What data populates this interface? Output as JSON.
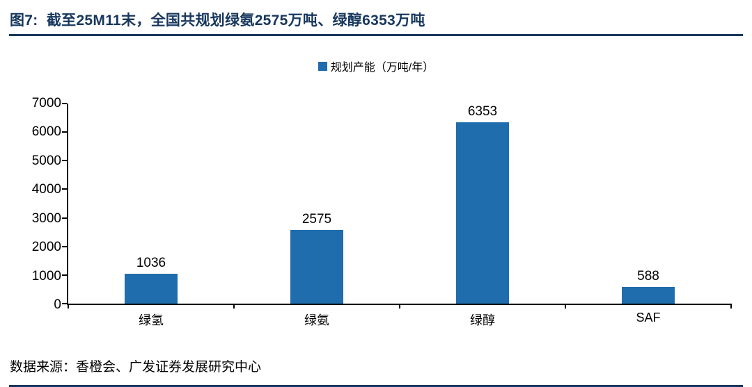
{
  "colors": {
    "navy": "#17375E",
    "bar_blue": "#1F6DAD",
    "axis": "#000000",
    "text": "#000000",
    "background": "#FFFFFF"
  },
  "chart_data": {
    "type": "bar",
    "title": "图7:  截至25M11末，全国共规划绿氨2575万吨、绿醇6353万吨",
    "legend": [
      "规划产能（万吨/年）"
    ],
    "legend_position": "top-center",
    "legend_marker": "square",
    "categories": [
      "绿氢",
      "绿氨",
      "绿醇",
      "SAF"
    ],
    "values": [
      1036,
      2575,
      6353,
      588
    ],
    "data_labels_shown": true,
    "xlabel": "",
    "ylabel": "",
    "ylim": [
      0,
      7000
    ],
    "yticks": [
      0,
      1000,
      2000,
      3000,
      4000,
      5000,
      6000,
      7000
    ],
    "grid": false,
    "bar_color": "#1F6DAD",
    "source": "数据来源：香橙会、广发证券发展研究中心"
  }
}
